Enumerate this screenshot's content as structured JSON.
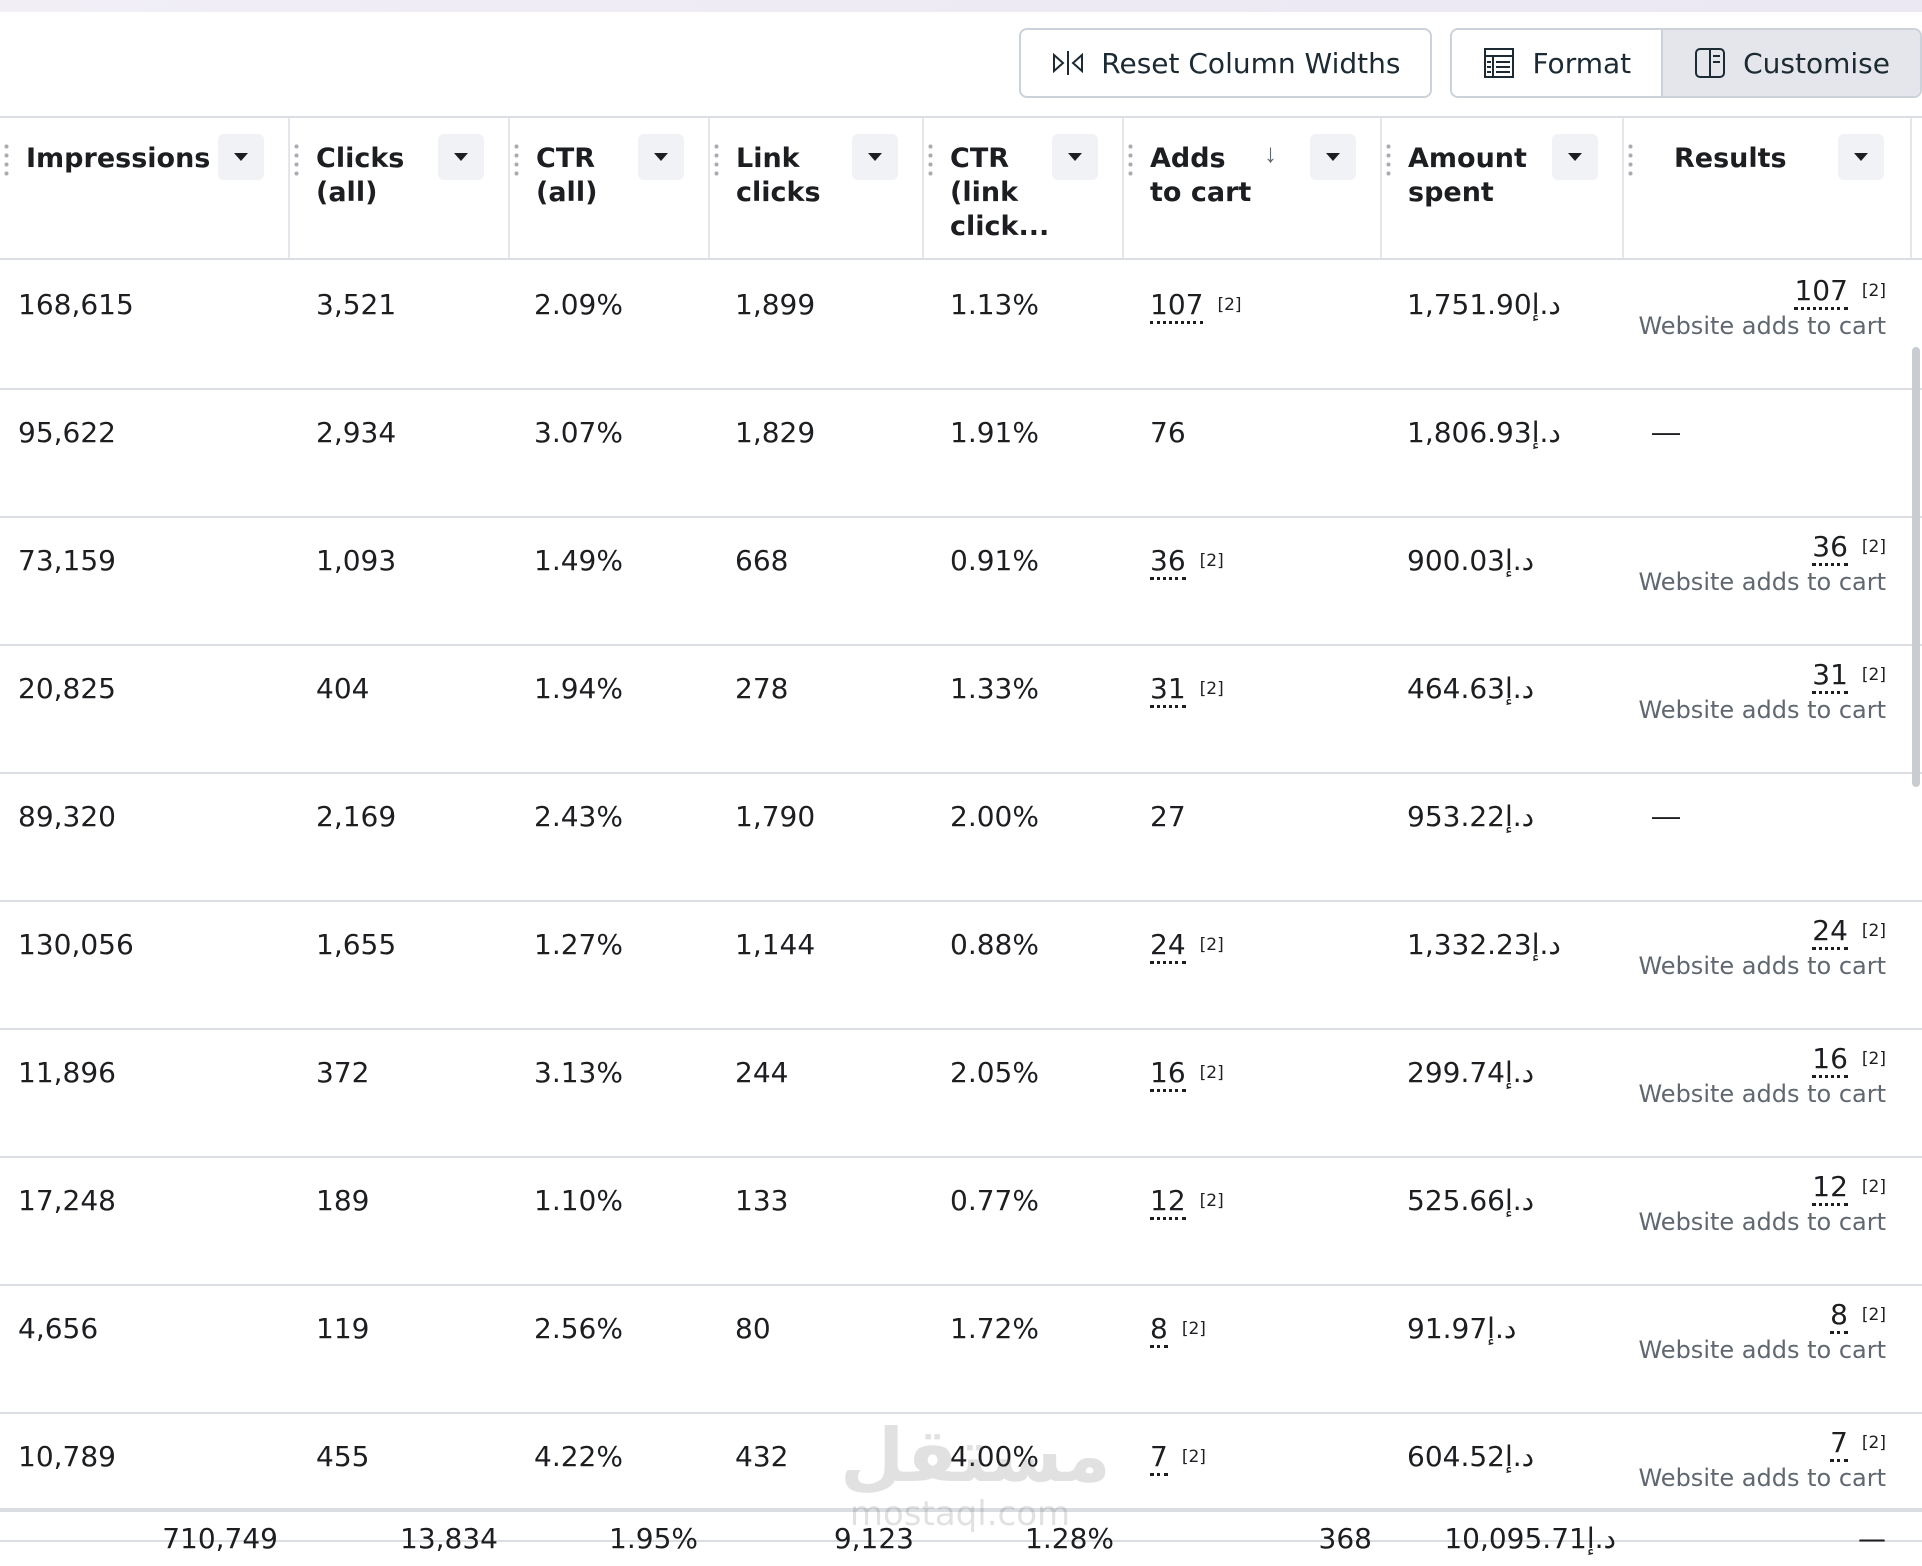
{
  "toolbar": {
    "reset_label": "Reset Column Widths",
    "format_label": "Format",
    "customise_label": "Customise"
  },
  "columns": [
    {
      "key": "impressions",
      "label": "Impressions"
    },
    {
      "key": "clicks_all",
      "label": "Clicks\n(all)"
    },
    {
      "key": "ctr_all",
      "label": "CTR\n(all)"
    },
    {
      "key": "link_clicks",
      "label": "Link\nclicks"
    },
    {
      "key": "ctr_link",
      "label": "CTR\n(link\nclick..."
    },
    {
      "key": "adds_to_cart",
      "label": "Adds\nto cart",
      "sort_icon": "arrow-down-icon"
    },
    {
      "key": "amount_spent",
      "label": "Amount\nspent"
    },
    {
      "key": "results",
      "label": "Results"
    }
  ],
  "rows": [
    {
      "impressions": "168,615",
      "clicks_all": "3,521",
      "ctr_all": "2.09%",
      "link_clicks": "1,899",
      "ctr_link": "1.13%",
      "adds_to_cart": "107",
      "adds_note": "[2]",
      "amount_spent": "1,751.90د.إ",
      "results_value": "107",
      "results_note": "[2]",
      "results_label": "Website adds to cart"
    },
    {
      "impressions": "95,622",
      "clicks_all": "2,934",
      "ctr_all": "3.07%",
      "link_clicks": "1,829",
      "ctr_link": "1.91%",
      "adds_to_cart": "76",
      "adds_note": "",
      "amount_spent": "1,806.93د.إ",
      "results_value": "—",
      "results_note": "",
      "results_label": ""
    },
    {
      "impressions": "73,159",
      "clicks_all": "1,093",
      "ctr_all": "1.49%",
      "link_clicks": "668",
      "ctr_link": "0.91%",
      "adds_to_cart": "36",
      "adds_note": "[2]",
      "amount_spent": "900.03د.إ",
      "results_value": "36",
      "results_note": "[2]",
      "results_label": "Website adds to cart"
    },
    {
      "impressions": "20,825",
      "clicks_all": "404",
      "ctr_all": "1.94%",
      "link_clicks": "278",
      "ctr_link": "1.33%",
      "adds_to_cart": "31",
      "adds_note": "[2]",
      "amount_spent": "464.63د.إ",
      "results_value": "31",
      "results_note": "[2]",
      "results_label": "Website adds to cart"
    },
    {
      "impressions": "89,320",
      "clicks_all": "2,169",
      "ctr_all": "2.43%",
      "link_clicks": "1,790",
      "ctr_link": "2.00%",
      "adds_to_cart": "27",
      "adds_note": "",
      "amount_spent": "953.22د.إ",
      "results_value": "—",
      "results_note": "",
      "results_label": ""
    },
    {
      "impressions": "130,056",
      "clicks_all": "1,655",
      "ctr_all": "1.27%",
      "link_clicks": "1,144",
      "ctr_link": "0.88%",
      "adds_to_cart": "24",
      "adds_note": "[2]",
      "amount_spent": "1,332.23د.إ",
      "results_value": "24",
      "results_note": "[2]",
      "results_label": "Website adds to cart"
    },
    {
      "impressions": "11,896",
      "clicks_all": "372",
      "ctr_all": "3.13%",
      "link_clicks": "244",
      "ctr_link": "2.05%",
      "adds_to_cart": "16",
      "adds_note": "[2]",
      "amount_spent": "299.74د.إ",
      "results_value": "16",
      "results_note": "[2]",
      "results_label": "Website adds to cart"
    },
    {
      "impressions": "17,248",
      "clicks_all": "189",
      "ctr_all": "1.10%",
      "link_clicks": "133",
      "ctr_link": "0.77%",
      "adds_to_cart": "12",
      "adds_note": "[2]",
      "amount_spent": "525.66د.إ",
      "results_value": "12",
      "results_note": "[2]",
      "results_label": "Website adds to cart"
    },
    {
      "impressions": "4,656",
      "clicks_all": "119",
      "ctr_all": "2.56%",
      "link_clicks": "80",
      "ctr_link": "1.72%",
      "adds_to_cart": "8",
      "adds_note": "[2]",
      "amount_spent": "91.97د.إ",
      "results_value": "8",
      "results_note": "[2]",
      "results_label": "Website adds to cart"
    },
    {
      "impressions": "10,789",
      "clicks_all": "455",
      "ctr_all": "4.22%",
      "link_clicks": "432",
      "ctr_link": "4.00%",
      "adds_to_cart": "7",
      "adds_note": "[2]",
      "amount_spent": "604.52د.إ",
      "results_value": "7",
      "results_note": "[2]",
      "results_label": "Website adds to cart"
    }
  ],
  "totals": {
    "impressions": "710,749",
    "clicks_all": "13,834",
    "ctr_all": "1.95%",
    "link_clicks": "9,123",
    "ctr_link": "1.28%",
    "adds_to_cart": "368",
    "amount_spent": "10,095.71د.إ",
    "results": "—"
  },
  "watermark": {
    "arabic": "مستقل",
    "latin": "mostaql.com"
  },
  "icons": {
    "reset": "column-resize-icon",
    "format": "table-format-icon",
    "customise": "columns-panel-icon",
    "dropdown": "caret-down-icon"
  }
}
